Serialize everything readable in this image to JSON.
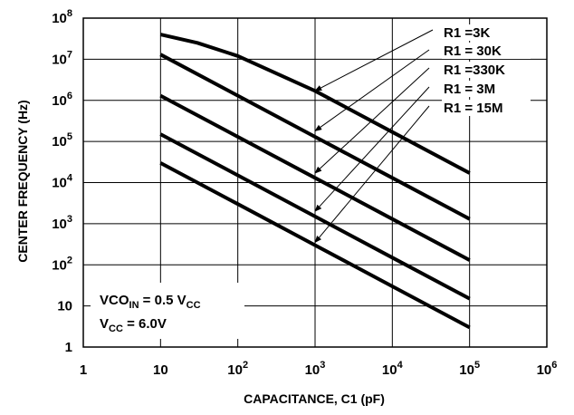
{
  "chart_data": {
    "type": "line",
    "x_scale": "log",
    "y_scale": "log",
    "xlim": [
      1,
      1000000
    ],
    "ylim": [
      1,
      100000000
    ],
    "grid": true,
    "xlabel": "CAPACITANCE, C1 (pF)",
    "ylabel": "CENTER FREQUENCY (Hz)",
    "x_ticks": [
      {
        "base": "1",
        "exp": ""
      },
      {
        "base": "10",
        "exp": ""
      },
      {
        "base": "10",
        "exp": "2"
      },
      {
        "base": "10",
        "exp": "3"
      },
      {
        "base": "10",
        "exp": "4"
      },
      {
        "base": "10",
        "exp": "5"
      },
      {
        "base": "10",
        "exp": "6"
      }
    ],
    "y_ticks": [
      {
        "base": "1",
        "exp": ""
      },
      {
        "base": "10",
        "exp": ""
      },
      {
        "base": "10",
        "exp": "2"
      },
      {
        "base": "10",
        "exp": "3"
      },
      {
        "base": "10",
        "exp": "4"
      },
      {
        "base": "10",
        "exp": "5"
      },
      {
        "base": "10",
        "exp": "6"
      },
      {
        "base": "10",
        "exp": "7"
      },
      {
        "base": "10",
        "exp": "8"
      }
    ],
    "series": [
      {
        "name": "R1 =3K",
        "x": [
          10,
          30,
          100,
          1000,
          10000,
          100000
        ],
        "y": [
          40000000,
          25000000,
          12000000,
          1700000,
          170000,
          17000
        ],
        "arrow_at": [
          1000,
          1700000
        ]
      },
      {
        "name": "R1 = 30K",
        "x": [
          10,
          100,
          1000,
          10000,
          100000
        ],
        "y": [
          13000000,
          1300000,
          130000,
          13000,
          1300
        ],
        "arrow_at": [
          1000,
          180000
        ]
      },
      {
        "name": "R1 =330K",
        "x": [
          10,
          100,
          1000,
          10000,
          100000
        ],
        "y": [
          1300000,
          130000,
          13000,
          1300,
          130
        ],
        "arrow_at": [
          1000,
          17000
        ]
      },
      {
        "name": "R1 = 3M",
        "x": [
          10,
          100,
          1000,
          10000,
          100000
        ],
        "y": [
          150000,
          15000,
          1500,
          150,
          15
        ],
        "arrow_at": [
          1000,
          2000
        ]
      },
      {
        "name": "R1 = 15M",
        "x": [
          10,
          100,
          1000,
          10000,
          100000
        ],
        "y": [
          30000,
          3000,
          300,
          30,
          3
        ],
        "arrow_at": [
          1000,
          350
        ]
      }
    ],
    "annotation": {
      "line1_main": "VCO",
      "line1_sub": "IN",
      "line1_rest": " = 0.5 V",
      "line1_sub2": "CC",
      "line2_main": "V",
      "line2_sub": "CC",
      "line2_rest": " = 6.0V"
    }
  }
}
